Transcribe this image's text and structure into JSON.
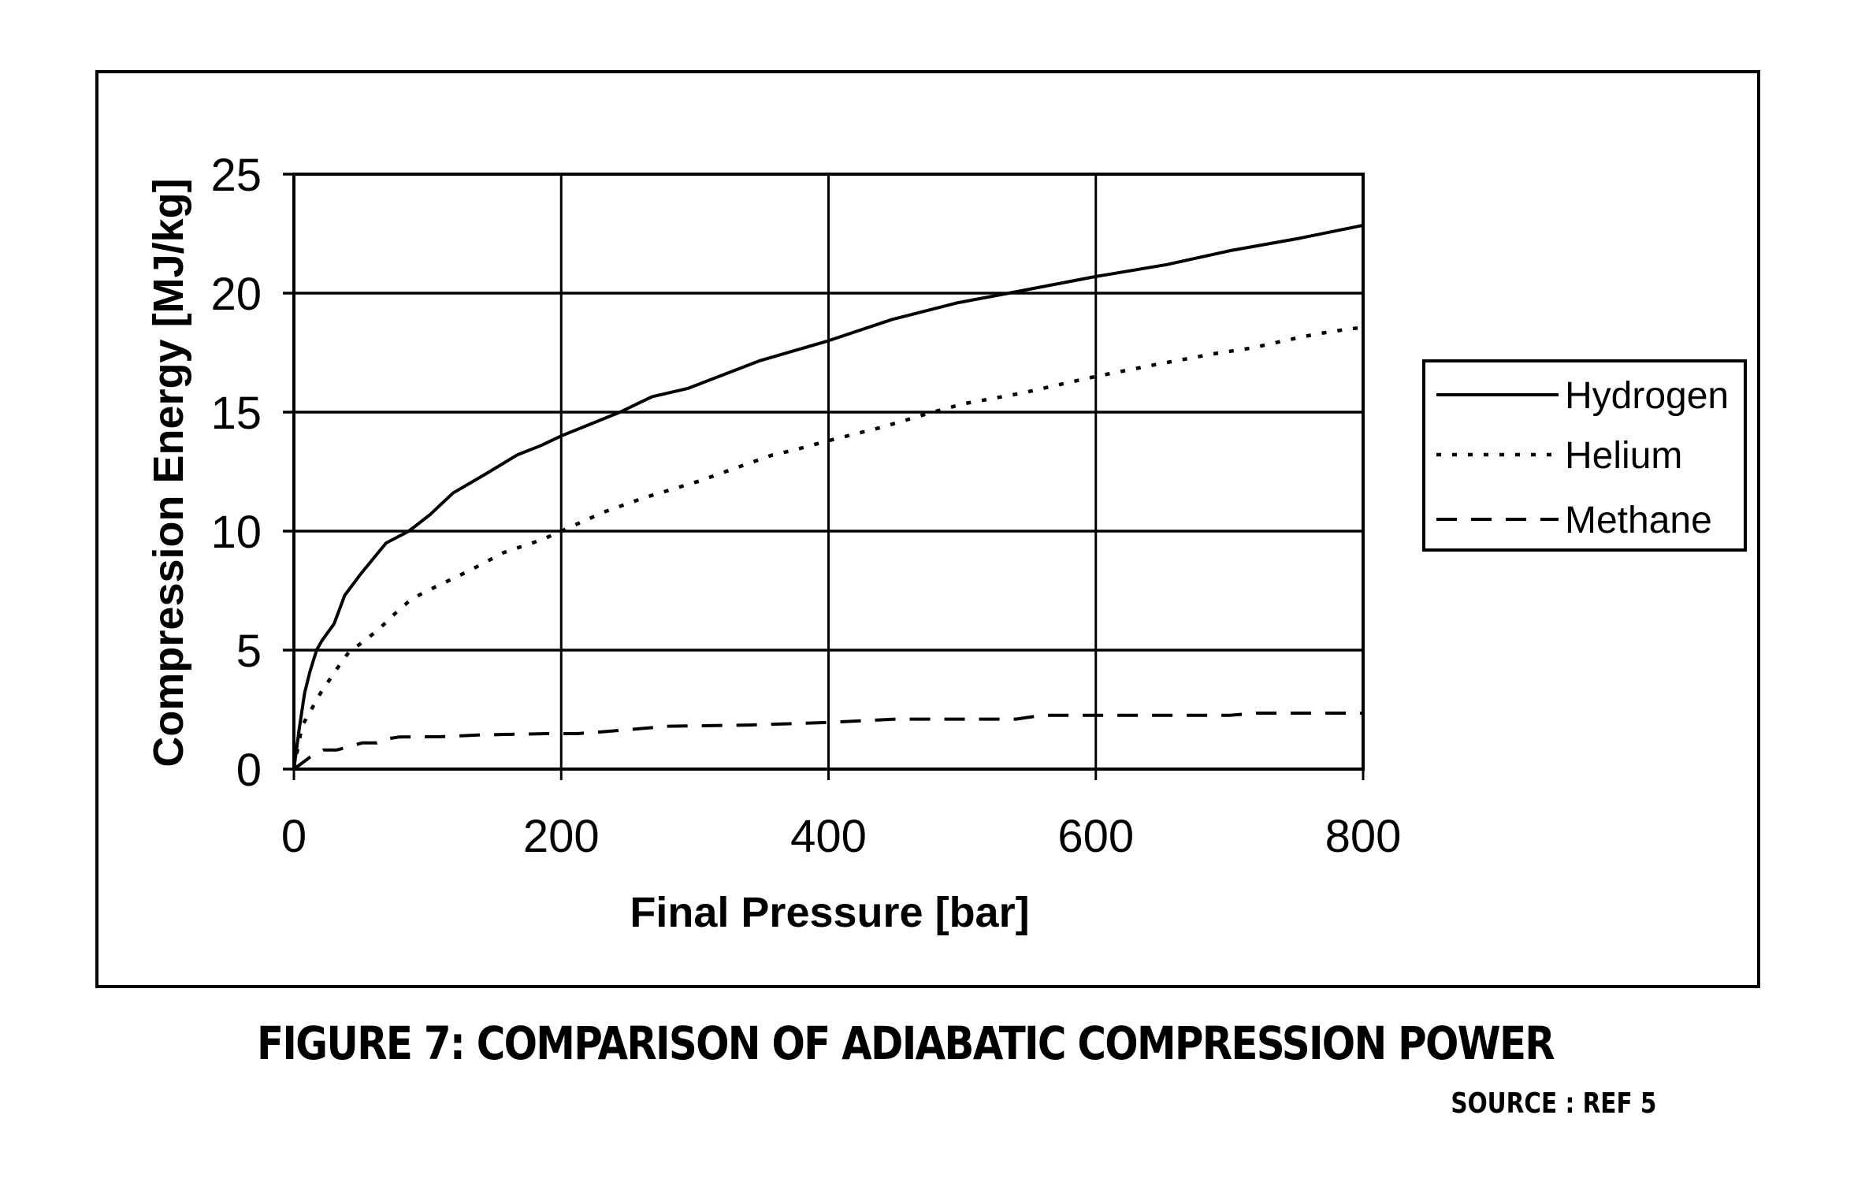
{
  "caption": "FIGURE 7: COMPARISON OF ADIABATIC COMPRESSION POWER",
  "source": "SOURCE : REF 5",
  "chart_data": {
    "type": "line",
    "title": "",
    "xlabel": "Final Pressure [bar]",
    "ylabel": "Compression Energy [MJ/kg]",
    "xlim": [
      0,
      800
    ],
    "ylim": [
      0,
      25
    ],
    "xticks": [
      0,
      200,
      400,
      600,
      800
    ],
    "yticks": [
      0,
      5,
      10,
      15,
      20,
      25
    ],
    "grid": true,
    "legend_position": "right",
    "series": [
      {
        "name": "Hydrogen",
        "style": "solid",
        "x": [
          0,
          4,
          8,
          12,
          17,
          21,
          30,
          38,
          50,
          69,
          86,
          102,
          119,
          142,
          167,
          185,
          200,
          244,
          268,
          295,
          348,
          400,
          448,
          497,
          535,
          600,
          653,
          702,
          752,
          800
        ],
        "y": [
          0,
          1.7,
          3.2,
          4.1,
          5.0,
          5.4,
          6.1,
          7.3,
          8.2,
          9.5,
          10.0,
          10.7,
          11.6,
          12.35,
          13.2,
          13.6,
          14.0,
          15.0,
          15.65,
          16.0,
          17.15,
          18.0,
          18.9,
          19.6,
          20.0,
          20.7,
          21.2,
          21.8,
          22.3,
          22.85
        ]
      },
      {
        "name": "Helium",
        "style": "dotted",
        "x": [
          0,
          6,
          11,
          20,
          32,
          41,
          53,
          64,
          75,
          88,
          102,
          130,
          157,
          186,
          200,
          232,
          262,
          303,
          318,
          358,
          374,
          400,
          439,
          475,
          501,
          545,
          588,
          600,
          645,
          688,
          717,
          745,
          767,
          790,
          800
        ],
        "y": [
          0,
          1.8,
          2.3,
          3.2,
          4.2,
          4.9,
          5.4,
          5.9,
          6.5,
          7.15,
          7.55,
          8.3,
          9.1,
          9.65,
          10.0,
          10.8,
          11.4,
          12.1,
          12.4,
          13.2,
          13.4,
          13.8,
          14.35,
          14.95,
          15.35,
          15.8,
          16.35,
          16.5,
          17.0,
          17.45,
          17.7,
          18.05,
          18.3,
          18.5,
          18.55
        ]
      },
      {
        "name": "Methane",
        "style": "dashed",
        "x": [
          0,
          12,
          22,
          32,
          51,
          62,
          67,
          79,
          110,
          138,
          162,
          189,
          212,
          234,
          280,
          340,
          400,
          450,
          540,
          560,
          600,
          700,
          720,
          800
        ],
        "y": [
          0,
          0.5,
          0.8,
          0.8,
          1.1,
          1.1,
          1.25,
          1.35,
          1.36,
          1.43,
          1.46,
          1.49,
          1.49,
          1.58,
          1.8,
          1.85,
          1.96,
          2.1,
          2.1,
          2.26,
          2.26,
          2.26,
          2.35,
          2.35
        ]
      }
    ]
  },
  "colors": {
    "line": "#000000",
    "grid": "#000000",
    "background": "#ffffff"
  }
}
